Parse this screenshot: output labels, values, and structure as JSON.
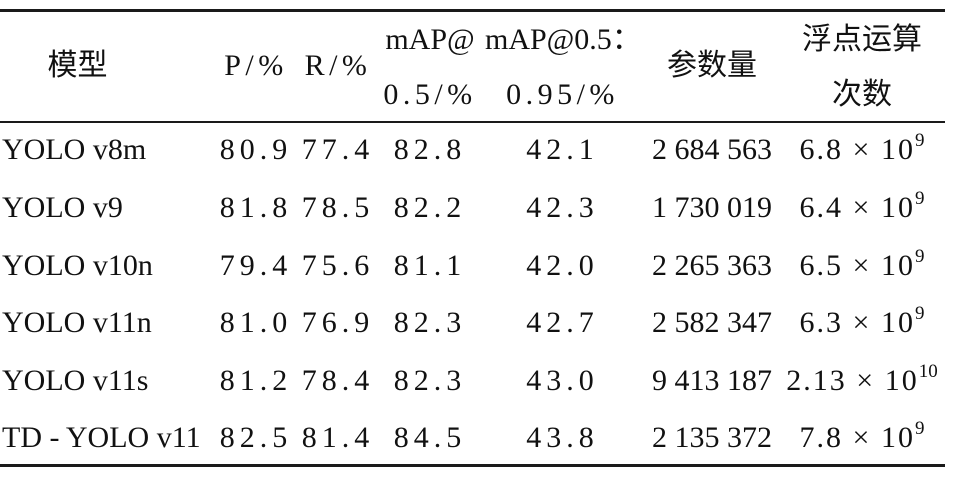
{
  "table": {
    "header": {
      "model": "模型",
      "p": "P/%",
      "r": "R/%",
      "map50": [
        "mAP@",
        "0.5/%"
      ],
      "map5095": [
        "mAP@0.5：",
        "0.95/%"
      ],
      "params": "参数量",
      "flops": [
        "浮点运算",
        "次数"
      ]
    },
    "rows": [
      {
        "model": "YOLO v8m",
        "p": "80.9",
        "r": "77.4",
        "map50": "82.8",
        "map5095": "42.1",
        "params": "2 684 563",
        "flops": {
          "base": "6.8 × 10",
          "exp": "9"
        }
      },
      {
        "model": "YOLO v9",
        "p": "81.8",
        "r": "78.5",
        "map50": "82.2",
        "map5095": "42.3",
        "params": "1 730 019",
        "flops": {
          "base": "6.4 × 10",
          "exp": "9"
        }
      },
      {
        "model": "YOLO v10n",
        "p": "79.4",
        "r": "75.6",
        "map50": "81.1",
        "map5095": "42.0",
        "params": "2 265 363",
        "flops": {
          "base": "6.5 × 10",
          "exp": "9"
        }
      },
      {
        "model": "YOLO v11n",
        "p": "81.0",
        "r": "76.9",
        "map50": "82.3",
        "map5095": "42.7",
        "params": "2 582 347",
        "flops": {
          "base": "6.3 × 10",
          "exp": "9"
        }
      },
      {
        "model": "YOLO v11s",
        "p": "81.2",
        "r": "78.4",
        "map50": "82.3",
        "map5095": "43.0",
        "params": "9 413 187",
        "flops": {
          "base": "2.13 × 10",
          "exp": "10"
        }
      },
      {
        "model": "TD - YOLO v11",
        "p": "82.5",
        "r": "81.4",
        "map50": "84.5",
        "map5095": "43.8",
        "params": "2 135 372",
        "flops": {
          "base": "7.8 × 10",
          "exp": "9"
        }
      }
    ]
  }
}
